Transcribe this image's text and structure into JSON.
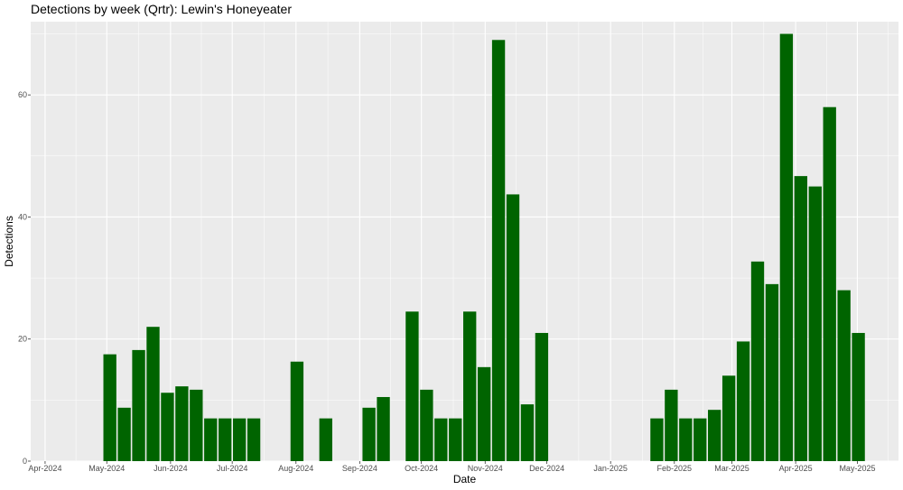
{
  "chart_data": {
    "type": "bar",
    "title": "Detections by week (Qrtr): Lewin's Honeyeater",
    "xlabel": "Date",
    "ylabel": "Detections",
    "ylim": [
      0,
      72
    ],
    "y_ticks": [
      0,
      20,
      40,
      60
    ],
    "x_range": [
      "2024-03-25",
      "2025-05-21"
    ],
    "x_ticks": [
      {
        "date": "2024-04-01",
        "label": "Apr-2024"
      },
      {
        "date": "2024-05-01",
        "label": "May-2024"
      },
      {
        "date": "2024-06-01",
        "label": "Jun-2024"
      },
      {
        "date": "2024-07-01",
        "label": "Jul-2024"
      },
      {
        "date": "2024-08-01",
        "label": "Aug-2024"
      },
      {
        "date": "2024-09-01",
        "label": "Sep-2024"
      },
      {
        "date": "2024-10-01",
        "label": "Oct-2024"
      },
      {
        "date": "2024-11-01",
        "label": "Nov-2024"
      },
      {
        "date": "2024-12-01",
        "label": "Dec-2024"
      },
      {
        "date": "2025-01-01",
        "label": "Jan-2025"
      },
      {
        "date": "2025-02-01",
        "label": "Feb-2025"
      },
      {
        "date": "2025-03-01",
        "label": "Mar-2025"
      },
      {
        "date": "2025-04-01",
        "label": "Apr-2025"
      },
      {
        "date": "2025-05-01",
        "label": "May-2025"
      }
    ],
    "bars": [
      {
        "week": "2024-04-29",
        "value": 17.5
      },
      {
        "week": "2024-05-06",
        "value": 8.75
      },
      {
        "week": "2024-05-13",
        "value": 18.2
      },
      {
        "week": "2024-05-20",
        "value": 22
      },
      {
        "week": "2024-05-27",
        "value": 11.2
      },
      {
        "week": "2024-06-03",
        "value": 12.25
      },
      {
        "week": "2024-06-10",
        "value": 11.7
      },
      {
        "week": "2024-06-17",
        "value": 7
      },
      {
        "week": "2024-06-24",
        "value": 7
      },
      {
        "week": "2024-07-01",
        "value": 7
      },
      {
        "week": "2024-07-08",
        "value": 7
      },
      {
        "week": "2024-07-29",
        "value": 16.3
      },
      {
        "week": "2024-08-12",
        "value": 7
      },
      {
        "week": "2024-09-02",
        "value": 8.75
      },
      {
        "week": "2024-09-09",
        "value": 10.5
      },
      {
        "week": "2024-09-23",
        "value": 24.5
      },
      {
        "week": "2024-09-30",
        "value": 11.7
      },
      {
        "week": "2024-10-07",
        "value": 7
      },
      {
        "week": "2024-10-14",
        "value": 7
      },
      {
        "week": "2024-10-21",
        "value": 24.5
      },
      {
        "week": "2024-10-28",
        "value": 15.4
      },
      {
        "week": "2024-11-04",
        "value": 69
      },
      {
        "week": "2024-11-11",
        "value": 43.7
      },
      {
        "week": "2024-11-18",
        "value": 9.3
      },
      {
        "week": "2024-11-25",
        "value": 21
      },
      {
        "week": "2025-01-20",
        "value": 7
      },
      {
        "week": "2025-01-27",
        "value": 11.7
      },
      {
        "week": "2025-02-03",
        "value": 7
      },
      {
        "week": "2025-02-10",
        "value": 7
      },
      {
        "week": "2025-02-17",
        "value": 8.4
      },
      {
        "week": "2025-02-24",
        "value": 14
      },
      {
        "week": "2025-03-03",
        "value": 19.6
      },
      {
        "week": "2025-03-10",
        "value": 32.7
      },
      {
        "week": "2025-03-17",
        "value": 29
      },
      {
        "week": "2025-03-24",
        "value": 70
      },
      {
        "week": "2025-03-31",
        "value": 46.7
      },
      {
        "week": "2025-04-07",
        "value": 45
      },
      {
        "week": "2025-04-14",
        "value": 58
      },
      {
        "week": "2025-04-21",
        "value": 28
      },
      {
        "week": "2025-04-28",
        "value": 21
      }
    ],
    "bar_color": "#006400",
    "panel_background": "#ebebeb",
    "grid": true,
    "legend": "none"
  }
}
